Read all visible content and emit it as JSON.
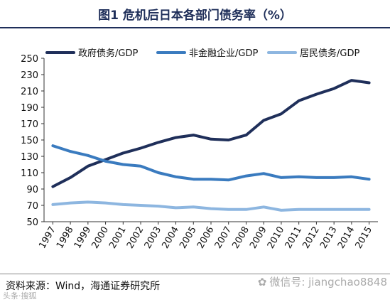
{
  "header": {
    "title": "图1  危机后日本各部门债务率（%）"
  },
  "footer": {
    "source": "资料来源：Wind，海通证券研究所",
    "watermark": "微信号: jiangchao8848",
    "corner_mark": "头条·搜狐"
  },
  "chart_data": {
    "type": "line",
    "title": "图1  危机后日本各部门债务率（%）",
    "xlabel": "",
    "ylabel": "",
    "x": [
      "1997",
      "1998",
      "1999",
      "2000",
      "2001",
      "2002",
      "2003",
      "2004",
      "2005",
      "2006",
      "2007",
      "2008",
      "2009",
      "2010",
      "2011",
      "2012",
      "2013",
      "2014",
      "2015"
    ],
    "yticks": [
      50,
      70,
      90,
      110,
      130,
      150,
      170,
      190,
      210,
      230,
      250
    ],
    "ylim": [
      50,
      250
    ],
    "grid": false,
    "legend_position": "top",
    "series": [
      {
        "name": "政府债务/GDP",
        "color": "#1f2f5a",
        "values": [
          93,
          104,
          118,
          126,
          134,
          140,
          147,
          153,
          156,
          151,
          150,
          156,
          174,
          182,
          198,
          206,
          213,
          223,
          220
        ]
      },
      {
        "name": "非金融企业/GDP",
        "color": "#3a7bbf",
        "values": [
          143,
          136,
          131,
          124,
          120,
          118,
          110,
          105,
          102,
          102,
          101,
          106,
          109,
          104,
          105,
          104,
          104,
          105,
          102
        ]
      },
      {
        "name": "居民债务/GDP",
        "color": "#8db6e0",
        "values": [
          71,
          73,
          74,
          73,
          71,
          70,
          69,
          67,
          68,
          66,
          65,
          65,
          68,
          64,
          65,
          65,
          65,
          65,
          65
        ]
      }
    ]
  }
}
